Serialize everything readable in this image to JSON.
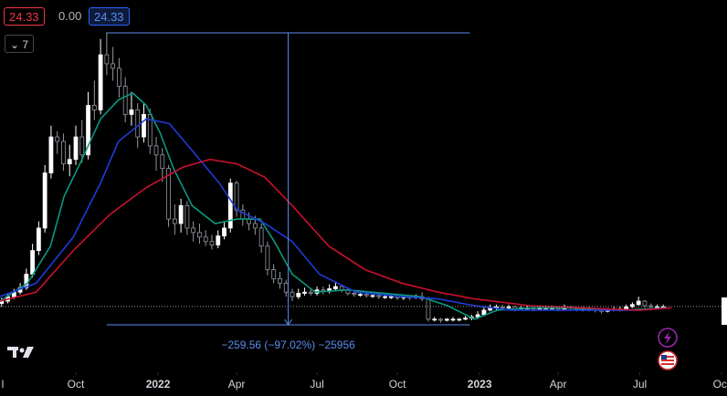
{
  "toolbar": {
    "chips": [
      "24.33",
      "0.00",
      "24.33"
    ],
    "indicator_count": "7"
  },
  "chart_data": {
    "type": "candlestick",
    "up_color": "#ffffff",
    "down_color": "#000000",
    "down_border": "#9598a1",
    "xlim": [
      -0.26,
      117.3
    ],
    "ylim": [
      -34.2,
      296.7
    ],
    "xticks": [
      {
        "value": -1,
        "label": "l"
      },
      {
        "value": 12,
        "label": "Oct"
      },
      {
        "value": 25.3,
        "label": "2022"
      },
      {
        "value": 38,
        "label": "Apr"
      },
      {
        "value": 51,
        "label": "Jul"
      },
      {
        "value": 64,
        "label": "Oct"
      },
      {
        "value": 77.3,
        "label": "2023"
      },
      {
        "value": 90,
        "label": "Apr"
      },
      {
        "value": 103.2,
        "label": "Jul"
      },
      {
        "value": 116.4,
        "label": "Oct"
      }
    ],
    "open": [
      27,
      29,
      33,
      37,
      41,
      53,
      74,
      94,
      143,
      175,
      171,
      151,
      155,
      175,
      159,
      203,
      199,
      248,
      240,
      236,
      220,
      195,
      199,
      175,
      195,
      167,
      159,
      147,
      102,
      98,
      114,
      94,
      90,
      86,
      82,
      79,
      87,
      94,
      134,
      110,
      102,
      98,
      94,
      78,
      57,
      49,
      45,
      37,
      33,
      36,
      37,
      36,
      39,
      38,
      40,
      42,
      39,
      36,
      35,
      35,
      34,
      34,
      33,
      33,
      33,
      32,
      33,
      32,
      33,
      31,
      13,
      13,
      12,
      13,
      13,
      13,
      14,
      15,
      17,
      21,
      23,
      24,
      23,
      24,
      22,
      23,
      23,
      22,
      23,
      23,
      23,
      22,
      24,
      23,
      22,
      22,
      22,
      21,
      20,
      21,
      22,
      22,
      24,
      26,
      29,
      25,
      24,
      24
    ],
    "high": [
      32,
      36,
      40,
      45,
      58,
      80,
      100,
      150,
      185,
      180,
      178,
      168,
      185,
      190,
      215,
      225,
      262,
      268,
      255,
      245,
      228,
      215,
      205,
      205,
      200,
      175,
      165,
      150,
      115,
      120,
      118,
      100,
      98,
      92,
      88,
      92,
      100,
      138,
      136,
      115,
      108,
      105,
      98,
      82,
      62,
      55,
      48,
      40,
      40,
      41,
      40,
      42,
      42,
      44,
      46,
      44,
      41,
      38,
      37,
      37,
      36,
      36,
      35,
      35,
      35,
      35,
      34,
      35,
      37,
      33,
      15,
      14,
      14,
      15,
      14,
      16,
      17,
      20,
      24,
      26,
      26,
      26,
      26,
      25,
      25,
      25,
      24,
      25,
      25,
      25,
      24,
      26,
      25,
      24,
      24,
      24,
      23,
      22,
      23,
      24,
      24,
      26,
      28,
      33,
      30,
      27,
      26,
      26
    ],
    "low": [
      24,
      27,
      31,
      35,
      39,
      50,
      70,
      90,
      138,
      160,
      145,
      140,
      150,
      152,
      155,
      190,
      195,
      230,
      225,
      210,
      188,
      185,
      165,
      170,
      160,
      145,
      135,
      95,
      88,
      90,
      88,
      82,
      80,
      78,
      75,
      76,
      84,
      90,
      104,
      96,
      92,
      88,
      72,
      52,
      45,
      40,
      33,
      29,
      31,
      34,
      34,
      34,
      35,
      36,
      38,
      37,
      34,
      33,
      33,
      32,
      32,
      31,
      31,
      31,
      30,
      30,
      30,
      31,
      29,
      11,
      11,
      10,
      11,
      11,
      11,
      12,
      12,
      13,
      16,
      20,
      21,
      21,
      21,
      20,
      21,
      21,
      20,
      21,
      21,
      21,
      20,
      21,
      21,
      20,
      20,
      20,
      19,
      18,
      19,
      20,
      20,
      21,
      23,
      25,
      23,
      23,
      22,
      23
    ],
    "close": [
      29,
      33,
      37,
      41,
      53,
      74,
      94,
      143,
      175,
      171,
      151,
      155,
      175,
      159,
      203,
      199,
      248,
      240,
      236,
      220,
      195,
      199,
      175,
      195,
      167,
      159,
      147,
      102,
      98,
      114,
      94,
      90,
      86,
      82,
      79,
      87,
      94,
      134,
      110,
      102,
      98,
      94,
      78,
      57,
      49,
      45,
      37,
      33,
      36,
      37,
      36,
      39,
      38,
      40,
      42,
      39,
      36,
      35,
      35,
      34,
      34,
      33,
      33,
      33,
      32,
      33,
      32,
      33,
      31,
      13,
      13,
      12,
      13,
      13,
      13,
      14,
      15,
      17,
      21,
      23,
      24,
      23,
      24,
      22,
      23,
      23,
      22,
      23,
      23,
      23,
      22,
      24,
      23,
      22,
      22,
      22,
      21,
      20,
      21,
      22,
      22,
      24,
      26,
      29,
      25,
      24,
      24,
      24
    ],
    "lines": [
      {
        "color": "#089981",
        "x": [
          -0.3,
          4.2,
          7.9,
          10.1,
          13,
          16,
          18.9,
          21.2,
          23.4,
          25.6,
          27.8,
          30.8,
          34.5,
          38.1,
          41.8,
          44.1,
          47,
          50.7,
          55.9,
          61.8,
          67.7,
          72.1,
          76.5,
          80.2,
          85.4,
          91.3,
          100.2,
          107.6
        ],
        "values": [
          29,
          45,
          78,
          122,
          155,
          191,
          208,
          214,
          203,
          179,
          147,
          114,
          98,
          102,
          102,
          82,
          53,
          37,
          39,
          36,
          33,
          25,
          13,
          21,
          23,
          23,
          21,
          23
        ]
      },
      {
        "color": "#1e3bd8",
        "x": [
          -0.3,
          5.6,
          11.6,
          16,
          18.9,
          23.4,
          27.1,
          30.8,
          35.2,
          38.1,
          42.6,
          47,
          51.4,
          57.3,
          64.7,
          70.6,
          76.5,
          82.4,
          91.3,
          103.1,
          107.6
        ],
        "values": [
          33,
          45,
          86,
          134,
          171,
          191,
          187,
          163,
          134,
          110,
          98,
          82,
          53,
          37,
          33,
          31,
          25,
          21,
          21,
          21,
          23
        ]
      },
      {
        "color": "#c8102e",
        "x": [
          -0.3,
          5.6,
          11.6,
          17.5,
          23.4,
          29.3,
          33.7,
          38.1,
          42.6,
          47,
          52.9,
          58.8,
          64.7,
          70.6,
          76.5,
          85.4,
          94.3,
          103.1,
          108.3
        ],
        "values": [
          29,
          37,
          74,
          106,
          130,
          148,
          155,
          151,
          139,
          114,
          78,
          57,
          45,
          37,
          31,
          25,
          23,
          21,
          23
        ]
      }
    ],
    "current_price": 24.33,
    "measure": {
      "x": [
        17,
        75.7
      ],
      "from": 267.53,
      "to": 7.97,
      "label": "−259.56 (−97.02%) −25956"
    }
  }
}
